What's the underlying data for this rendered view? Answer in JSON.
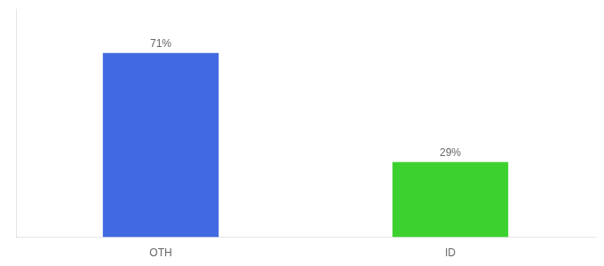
{
  "chart_data": {
    "type": "bar",
    "categories": [
      "OTH",
      "ID"
    ],
    "values": [
      71,
      29
    ],
    "value_labels": [
      "71%",
      "29%"
    ],
    "colors": [
      "#4169e1",
      "#3dd130"
    ],
    "ylim": [
      0,
      88
    ],
    "grid": false,
    "data_labels": true,
    "tick_labels": "x"
  }
}
